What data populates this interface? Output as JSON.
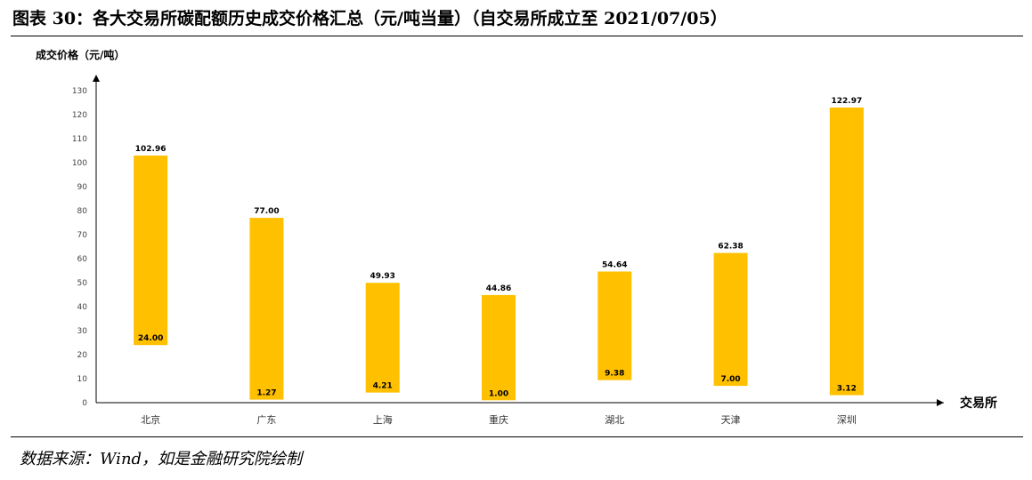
{
  "header": {
    "title": "图表 30：各大交易所碳配额历史成交价格汇总（元/吨当量）（自交易所成立至 2021/07/05）"
  },
  "footer": {
    "source": "数据来源：Wind，如是金融研究院绘制"
  },
  "chart_data": {
    "type": "bar",
    "subtype": "floating-range",
    "ylabel": "成交价格（元/吨）",
    "xlabel": "交易所",
    "ylim": [
      0,
      130
    ],
    "yticks": [
      0,
      10,
      20,
      30,
      40,
      50,
      60,
      70,
      80,
      90,
      100,
      110,
      120,
      130
    ],
    "categories": [
      "北京",
      "广东",
      "上海",
      "重庆",
      "湖北",
      "天津",
      "深圳"
    ],
    "series": [
      {
        "values_high": [
          102.96,
          77.0,
          49.93,
          44.86,
          54.64,
          62.38,
          122.97
        ],
        "values_low": [
          24.0,
          1.27,
          4.21,
          1.0,
          9.38,
          7.0,
          3.12
        ],
        "labels_high": [
          "102.96",
          "77.00",
          "49.93",
          "44.86",
          "54.64",
          "62.38",
          "122.97"
        ],
        "labels_low": [
          "24.00",
          "1.27",
          "4.21",
          "1.00",
          "9.38",
          "7.00",
          "3.12"
        ]
      }
    ],
    "bar_color": "#FFC000",
    "grid": false,
    "legend": "none"
  }
}
